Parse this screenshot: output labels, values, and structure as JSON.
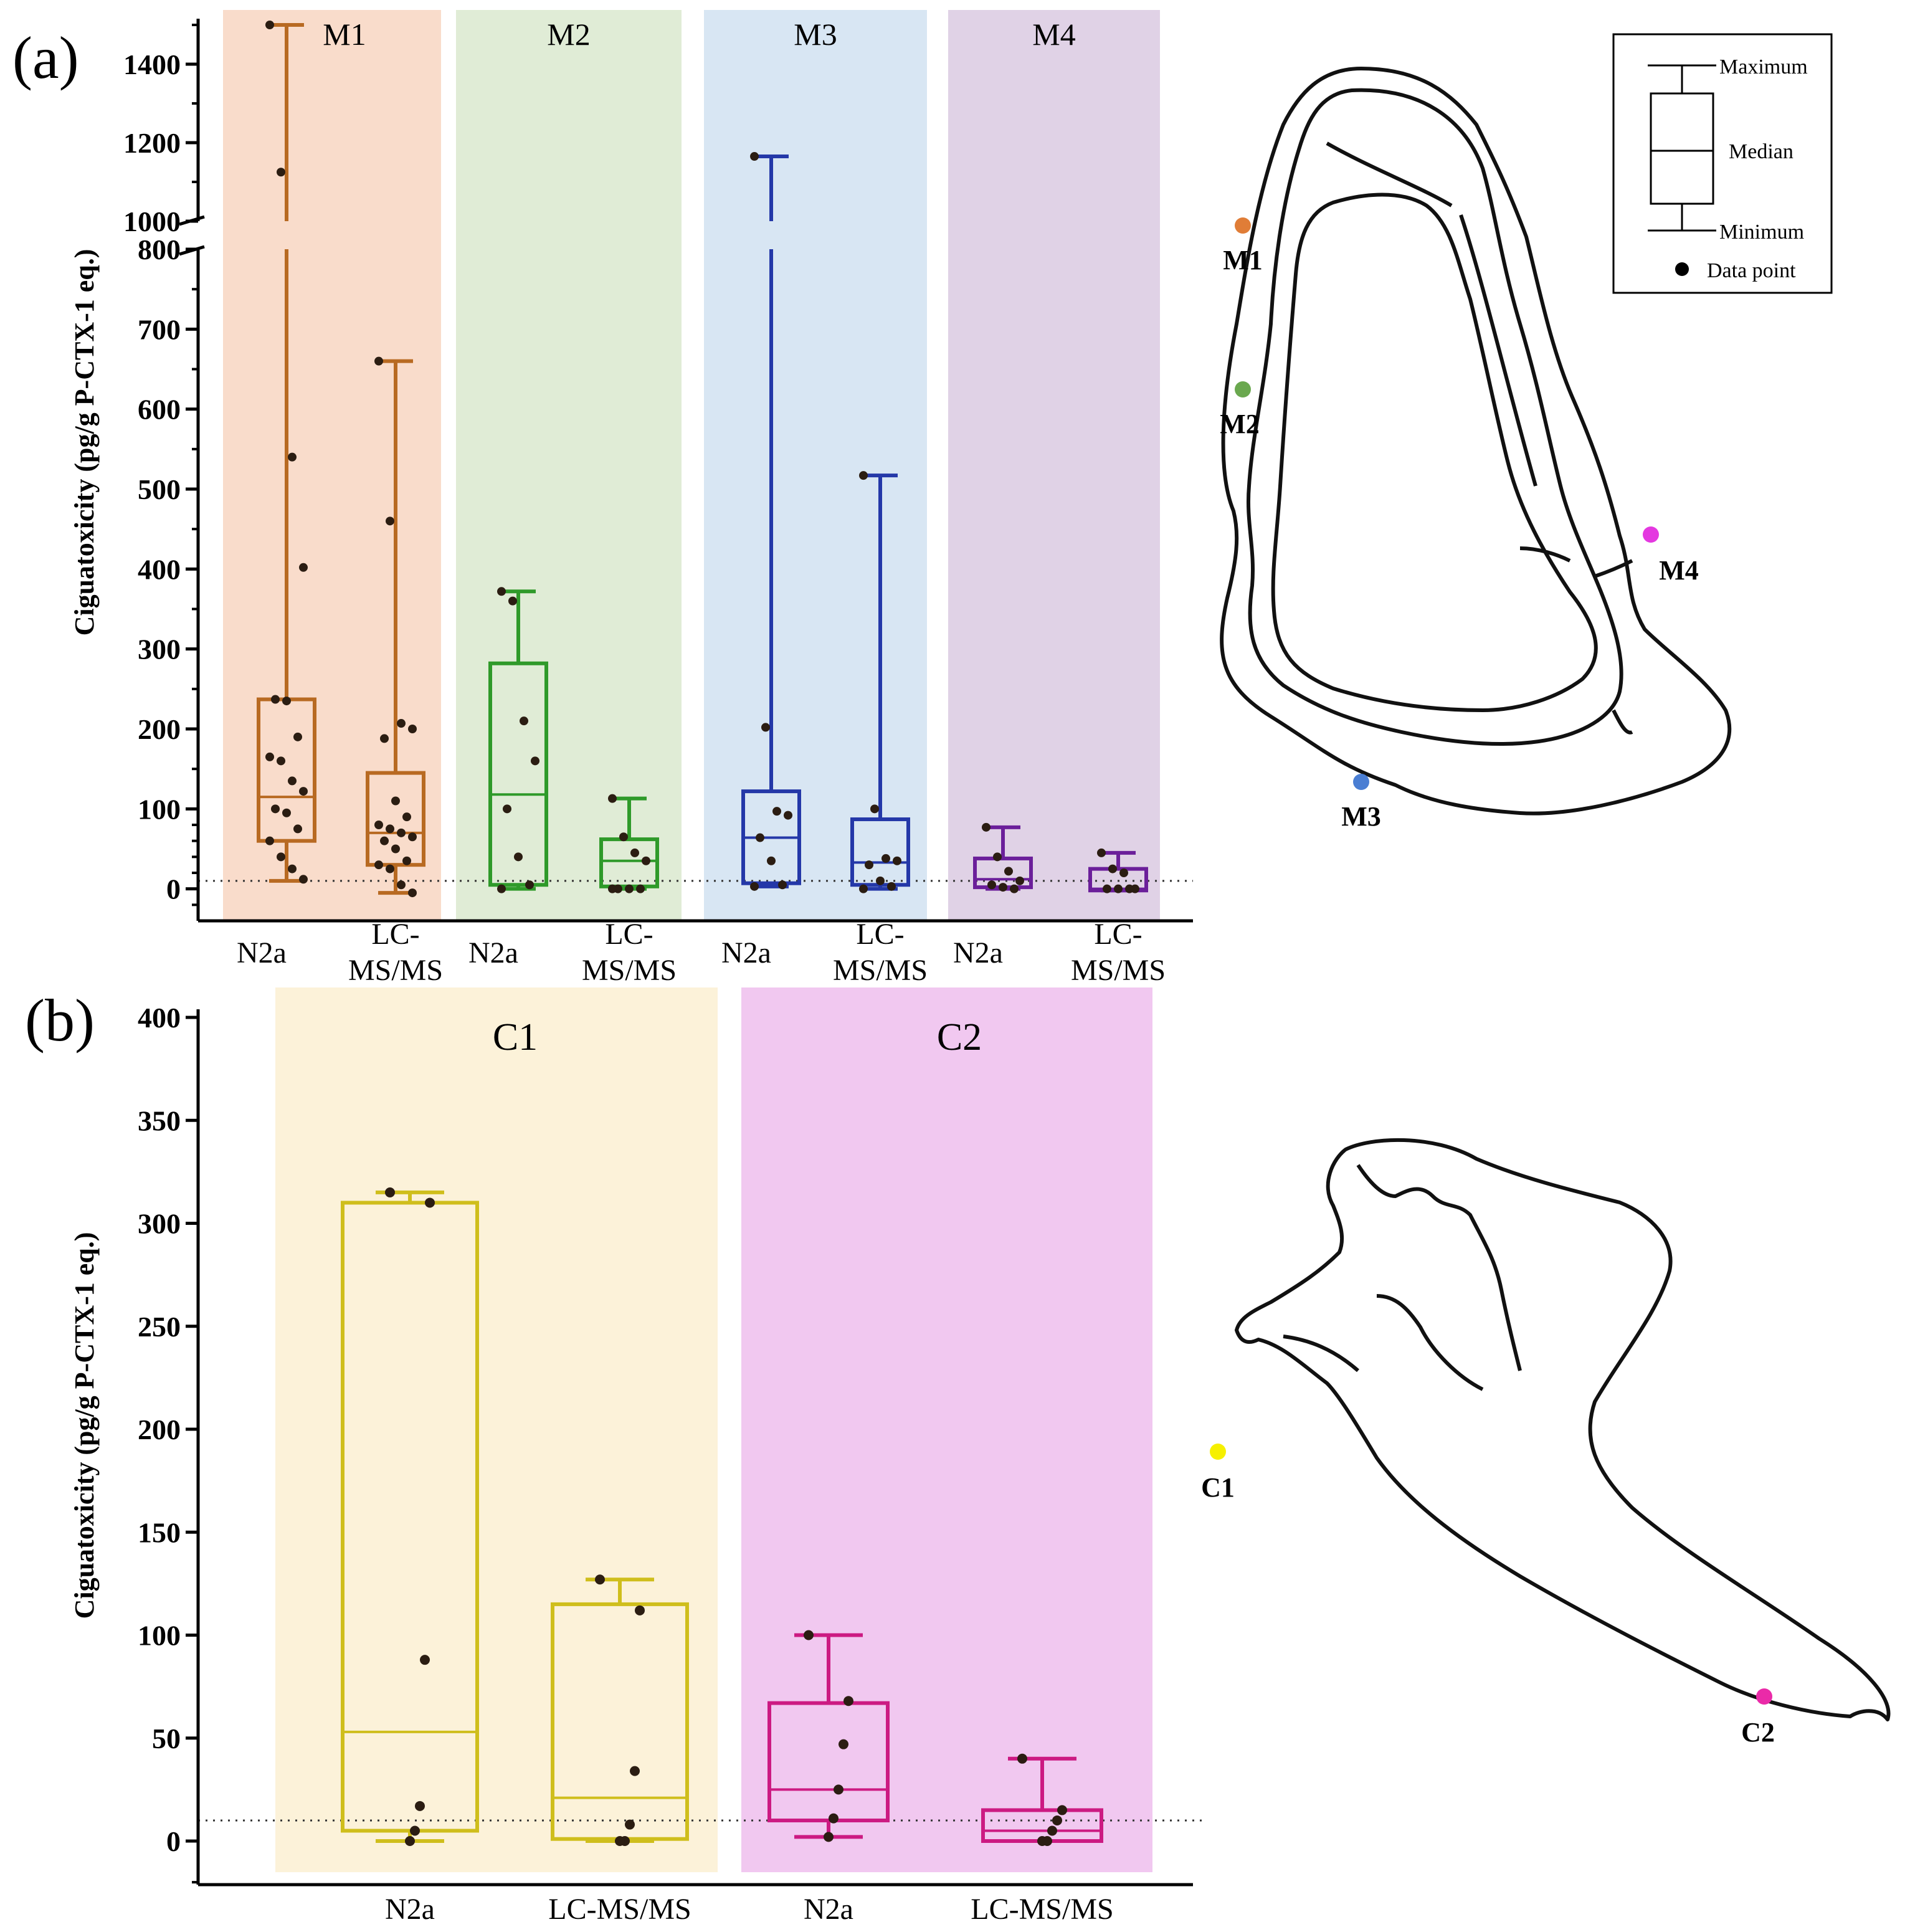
{
  "panels": {
    "a": {
      "label": "(a)"
    },
    "b": {
      "label": "(b)"
    }
  },
  "chart_data": [
    {
      "id": "panel-a",
      "type": "boxplot",
      "ylabel": "Ciguatoxicity (pg/g P-CTX-1 eq.)",
      "y_axis_break": [
        800,
        1000
      ],
      "ylim_lower": [
        -40,
        800
      ],
      "ylim_upper": [
        1000,
        1500
      ],
      "yticks_lower": [
        0,
        100,
        200,
        300,
        400,
        500,
        600,
        700,
        800
      ],
      "yticks_upper": [
        1000,
        1200,
        1400
      ],
      "threshold": 10,
      "groups": [
        {
          "name": "M1",
          "color": "#b86a22",
          "shade": "#f9dccb"
        },
        {
          "name": "M2",
          "color": "#2f9a2a",
          "shade": "#e0ecd6"
        },
        {
          "name": "M3",
          "color": "#2438a8",
          "shade": "#d8e6f3"
        },
        {
          "name": "M4",
          "color": "#6b1f9a",
          "shade": "#e0d2e6"
        }
      ],
      "categories": [
        "N2a",
        "LC-\nMS/MS",
        "N2a",
        "LC-\nMS/MS",
        "N2a",
        "LC-\nMS/MS",
        "N2a",
        "LC-\nMS/MS"
      ],
      "boxes": [
        {
          "group": "M1",
          "method": "N2a",
          "min": 10,
          "q1": 60,
          "median": 115,
          "q3": 237,
          "max": 1500,
          "points": [
            1500,
            1125,
            540,
            402,
            237,
            235,
            190,
            165,
            160,
            135,
            122,
            100,
            95,
            75,
            60,
            40,
            25,
            12
          ]
        },
        {
          "group": "M1",
          "method": "LC-MS/MS",
          "min": -5,
          "q1": 30,
          "median": 70,
          "q3": 145,
          "max": 660,
          "points": [
            660,
            460,
            207,
            200,
            188,
            110,
            90,
            80,
            75,
            70,
            65,
            60,
            50,
            35,
            30,
            25,
            5,
            -5
          ]
        },
        {
          "group": "M2",
          "method": "N2a",
          "min": 0,
          "q1": 5,
          "median": 118,
          "q3": 282,
          "max": 372,
          "points": [
            372,
            360,
            210,
            160,
            100,
            40,
            5,
            0
          ]
        },
        {
          "group": "M2",
          "method": "LC-MS/MS",
          "min": 0,
          "q1": 3,
          "median": 35,
          "q3": 62,
          "max": 113,
          "points": [
            113,
            65,
            45,
            35,
            0,
            0,
            0,
            0
          ]
        },
        {
          "group": "M3",
          "method": "N2a",
          "min": 3,
          "q1": 7,
          "median": 64,
          "q3": 122,
          "max": 1165,
          "points": [
            1165,
            202,
            97,
            92,
            64,
            35,
            5,
            3
          ]
        },
        {
          "group": "M3",
          "method": "LC-MS/MS",
          "min": 0,
          "q1": 5,
          "median": 33,
          "q3": 87,
          "max": 517,
          "points": [
            517,
            100,
            38,
            35,
            30,
            10,
            3,
            0
          ]
        },
        {
          "group": "M4",
          "method": "N2a",
          "min": 0,
          "q1": 2,
          "median": 12,
          "q3": 38,
          "max": 77,
          "points": [
            77,
            40,
            22,
            10,
            5,
            2,
            0
          ]
        },
        {
          "group": "M4",
          "method": "LC-MS/MS",
          "min": -2,
          "q1": -2,
          "median": 0,
          "q3": 25,
          "max": 45,
          "points": [
            45,
            25,
            20,
            0,
            0,
            0,
            0
          ]
        }
      ]
    },
    {
      "id": "panel-b",
      "type": "boxplot",
      "ylabel": "Ciguatoxicity (pg/g P-CTX-1 eq.)",
      "ylim": [
        -20,
        400
      ],
      "yticks": [
        0,
        50,
        100,
        150,
        200,
        250,
        300,
        350,
        400
      ],
      "threshold": 10,
      "groups": [
        {
          "name": "C1",
          "color": "#cfbe1c",
          "shade": "#fcf2d9"
        },
        {
          "name": "C2",
          "color": "#cc1a82",
          "shade": "#f1c8f0"
        }
      ],
      "categories": [
        "N2a",
        "LC-MS/MS",
        "N2a",
        "LC-MS/MS"
      ],
      "boxes": [
        {
          "group": "C1",
          "method": "N2a",
          "min": 0,
          "q1": 5,
          "median": 53,
          "q3": 310,
          "max": 315,
          "points": [
            315,
            310,
            88,
            17,
            5,
            0
          ]
        },
        {
          "group": "C1",
          "method": "LC-MS/MS",
          "min": 0,
          "q1": 1,
          "median": 21,
          "q3": 115,
          "max": 127,
          "points": [
            127,
            112,
            34,
            8,
            0,
            0
          ]
        },
        {
          "group": "C2",
          "method": "N2a",
          "min": 2,
          "q1": 10,
          "median": 25,
          "q3": 67,
          "max": 100,
          "points": [
            100,
            68,
            47,
            25,
            11,
            2
          ]
        },
        {
          "group": "C2",
          "method": "LC-MS/MS",
          "min": 0,
          "q1": 0,
          "median": 5,
          "q3": 15,
          "max": 40,
          "points": [
            40,
            15,
            10,
            5,
            0,
            0
          ]
        }
      ]
    }
  ],
  "legend": {
    "maximum": "Maximum",
    "median": "Median",
    "minimum": "Minimum",
    "data_point": "Data point"
  },
  "maps": {
    "top": {
      "sites": [
        {
          "name": "M1",
          "color": "#e07d37"
        },
        {
          "name": "M2",
          "color": "#6aa84f"
        },
        {
          "name": "M3",
          "color": "#4a7ed3"
        },
        {
          "name": "M4",
          "color": "#e438e0"
        }
      ]
    },
    "bottom": {
      "sites": [
        {
          "name": "C1",
          "color": "#f6f000"
        },
        {
          "name": "C2",
          "color": "#ea2aa8"
        }
      ]
    }
  }
}
